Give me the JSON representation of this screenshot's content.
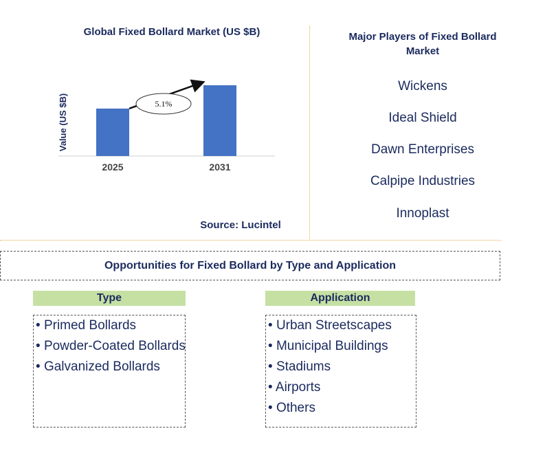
{
  "chart_data": {
    "type": "bar",
    "title": "Global Fixed Bollard Market (US $B)",
    "ylabel": "Value (US $B)",
    "categories": [
      "2025",
      "2031"
    ],
    "values": [
      0.59,
      0.88
    ],
    "ylim": [
      0,
      1.0
    ],
    "annotation": "5.1%",
    "bar_color": "#4472c4",
    "source": "Source: Lucintel"
  },
  "players": {
    "title": "Major Players of Fixed Bollard Market",
    "items": [
      "Wickens",
      "Ideal Shield",
      "Dawn Enterprises",
      "Calpipe Industries",
      "Innoplast"
    ]
  },
  "opportunities": {
    "title": "Opportunities for Fixed Bollard by Type and Application",
    "type": {
      "heading": "Type",
      "items": [
        "Primed Bollards",
        "Powder-Coated Bollards",
        "Galvanized Bollards"
      ]
    },
    "application": {
      "heading": "Application",
      "items": [
        "Urban Streetscapes",
        "Municipal Buildings",
        "Stadiums",
        "Airports",
        "Others"
      ]
    }
  },
  "colors": {
    "text": "#1a2a5e",
    "header_bg": "#c6e0a4",
    "divider": "#e3b04b"
  }
}
